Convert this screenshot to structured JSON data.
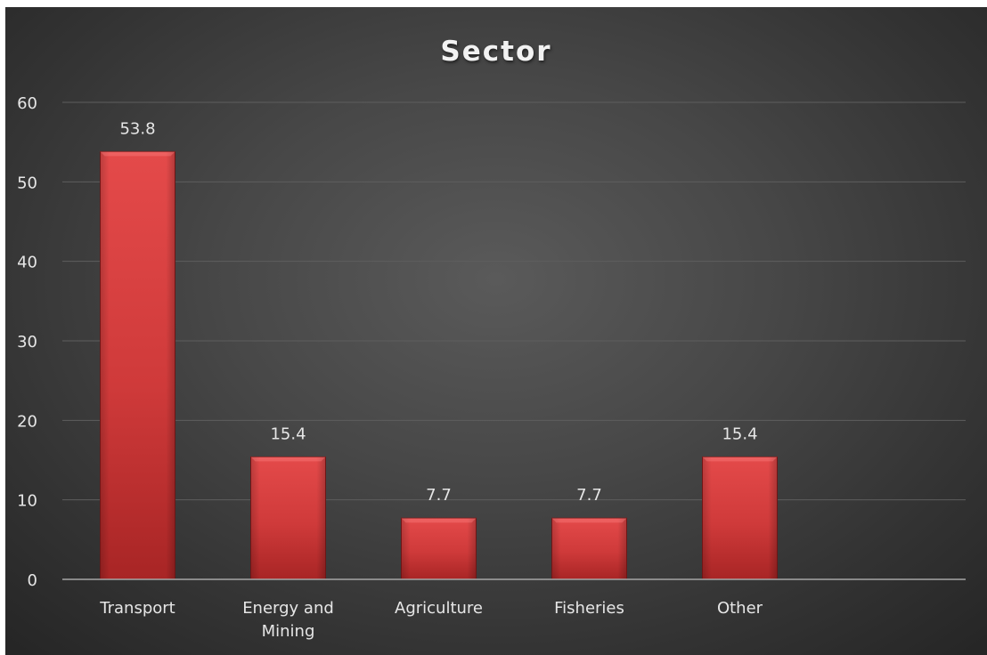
{
  "chart_data": {
    "type": "bar",
    "title": "Sector",
    "categories": [
      "Transport",
      "Energy and Mining",
      "Agriculture",
      "Fisheries",
      "Other"
    ],
    "category_lines": [
      [
        "Transport"
      ],
      [
        "Energy and",
        "Mining"
      ],
      [
        "Agriculture"
      ],
      [
        "Fisheries"
      ],
      [
        "Other"
      ]
    ],
    "values": [
      53.8,
      15.4,
      7.7,
      7.7,
      15.4
    ],
    "data_labels": [
      "53.8",
      "15.4",
      "7.7",
      "7.7",
      "15.4"
    ],
    "y_ticks": [
      0,
      10,
      20,
      30,
      40,
      50,
      60
    ],
    "ylim": [
      0,
      60
    ],
    "grid": true,
    "legend": "none",
    "colors": {
      "bar_top": "#e44a4a",
      "bar_mid": "#cf3a3a",
      "bar_bottom": "#a82525",
      "bar_edge": "#7a1818",
      "background_center": "#5a5a5a",
      "background_edge": "#262626",
      "grid": "#5e5e5e",
      "axis": "#a6a6a6",
      "text": "#e6e6e6"
    }
  }
}
